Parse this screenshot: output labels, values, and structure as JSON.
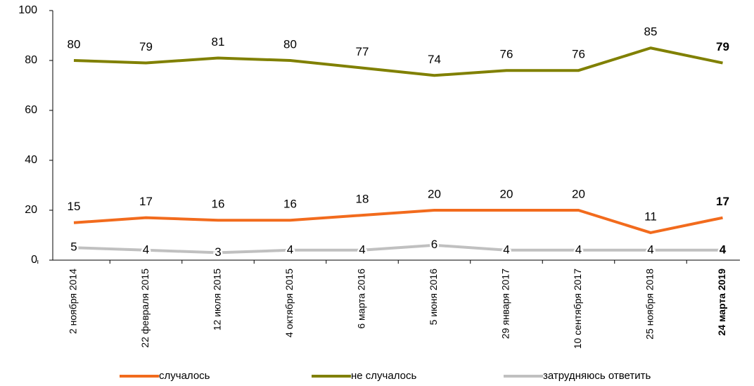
{
  "chart_data": {
    "type": "line",
    "categories": [
      "2 ноября 2014",
      "22 февраля 2015",
      "12 июля 2015",
      "4 октября 2015",
      "6 марта 2016",
      "5 июня 2016",
      "29 января 2017",
      "10 сентября 2017",
      "25 ноября 2018",
      "24 марта 2019"
    ],
    "series": [
      {
        "name": "случалось",
        "color": "#f26b1d",
        "values": [
          15,
          17,
          16,
          16,
          18,
          20,
          20,
          20,
          11,
          17
        ]
      },
      {
        "name": "не случалось",
        "color": "#808000",
        "values": [
          80,
          79,
          81,
          80,
          77,
          74,
          76,
          76,
          85,
          79
        ]
      },
      {
        "name": "затрудняюсь ответить",
        "color": "#c0c0c0",
        "values": [
          5,
          4,
          3,
          4,
          4,
          6,
          4,
          4,
          4,
          4
        ]
      }
    ],
    "ylim": [
      0,
      100
    ],
    "yticks": [
      0,
      20,
      40,
      60,
      80,
      100
    ],
    "grid": false,
    "legend": "bottom"
  }
}
